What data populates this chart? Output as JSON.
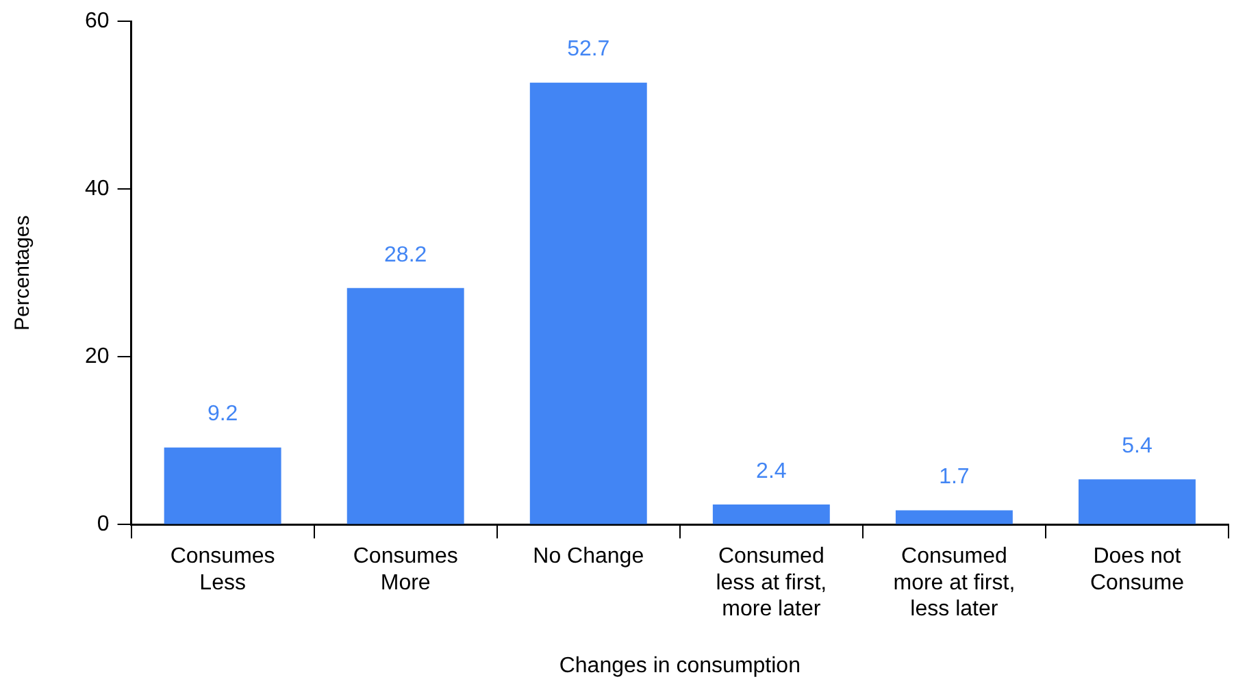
{
  "chart_data": {
    "type": "bar",
    "xlabel": "Changes in consumption",
    "ylabel": "Percentages",
    "categories": [
      "Consumes Less",
      "Consumes More",
      "No Change",
      "Consumed less at first, more later",
      "Consumed more at first, less later",
      "Does not Consume"
    ],
    "values": [
      9.2,
      28.2,
      52.7,
      2.4,
      1.7,
      5.4
    ],
    "color": "#4285f4",
    "ylim": [
      0,
      60
    ],
    "yticks": [
      0,
      20,
      40,
      60
    ],
    "grid": false,
    "legend": false,
    "data_labels": true
  }
}
